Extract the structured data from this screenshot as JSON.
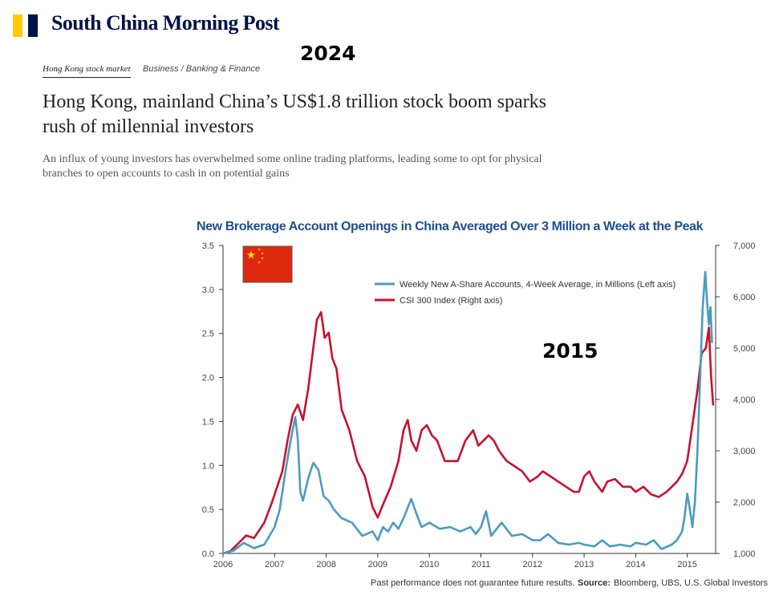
{
  "brand": {
    "name": "South China Morning Post",
    "colors": {
      "yellow": "#ffca05",
      "navy": "#001246"
    }
  },
  "overlay": {
    "year_top": "2024",
    "year_chart": "2015"
  },
  "article": {
    "tag_primary": "Hong Kong stock market",
    "tag_section": "Business / Banking & Finance",
    "headline": "Hong Kong, mainland China’s US$1.8 trillion stock boom sparks rush of millennial investors",
    "summary": "An influx of young investors has overwhelmed some online trading platforms, leading some to opt for physical branches to open accounts to cash in on potential gains"
  },
  "flag": {
    "name": "china-flag",
    "color": "#de2910",
    "star_color": "#ffde00"
  },
  "chart_data": {
    "type": "line",
    "title": "New Brokerage Account Openings in China Averaged Over 3 Million a Week at the Peak",
    "footnote": "Past performance does not guarantee future results.",
    "source_label": "Source:",
    "source_text": "Bloomberg, UBS, U.S. Global Investors",
    "x_ticks": [
      "2006",
      "2007",
      "2008",
      "2009",
      "2010",
      "2011",
      "2012",
      "2013",
      "2014",
      "2015"
    ],
    "xlim": [
      2006,
      2015.55
    ],
    "y_left": {
      "ticks": [
        "0.0",
        "0.5",
        "1.0",
        "1.5",
        "2.0",
        "2.5",
        "3.0",
        "3.5"
      ],
      "ylim": [
        0,
        3.5
      ]
    },
    "y_right": {
      "ticks": [
        "1,000",
        "2,000",
        "3,000",
        "4,000",
        "5,000",
        "6,000",
        "7,000"
      ],
      "ylim": [
        1000,
        7000
      ]
    },
    "series": [
      {
        "name": "Weekly New A-Share Accounts, 4-Week Average, in Millions (Left axis)",
        "axis": "left",
        "color": "#4a9cc0",
        "x": [
          2006.0,
          2006.2,
          2006.4,
          2006.6,
          2006.8,
          2007.0,
          2007.1,
          2007.2,
          2007.3,
          2007.4,
          2007.45,
          2007.5,
          2007.55,
          2007.65,
          2007.75,
          2007.85,
          2007.95,
          2008.05,
          2008.15,
          2008.3,
          2008.5,
          2008.7,
          2008.9,
          2009.0,
          2009.1,
          2009.2,
          2009.3,
          2009.4,
          2009.5,
          2009.6,
          2009.65,
          2009.75,
          2009.85,
          2010.0,
          2010.2,
          2010.4,
          2010.6,
          2010.8,
          2010.9,
          2011.0,
          2011.1,
          2011.2,
          2011.4,
          2011.6,
          2011.8,
          2012.0,
          2012.15,
          2012.3,
          2012.5,
          2012.7,
          2012.9,
          2013.0,
          2013.2,
          2013.35,
          2013.5,
          2013.7,
          2013.9,
          2014.0,
          2014.2,
          2014.35,
          2014.5,
          2014.7,
          2014.8,
          2014.9,
          2014.95,
          2015.0,
          2015.05,
          2015.1,
          2015.15,
          2015.2,
          2015.25,
          2015.3,
          2015.35,
          2015.38,
          2015.42,
          2015.45,
          2015.48
        ],
        "values": [
          0.0,
          0.03,
          0.12,
          0.06,
          0.1,
          0.3,
          0.5,
          0.9,
          1.25,
          1.55,
          1.3,
          0.7,
          0.6,
          0.85,
          1.03,
          0.95,
          0.65,
          0.6,
          0.5,
          0.4,
          0.35,
          0.2,
          0.25,
          0.15,
          0.3,
          0.25,
          0.35,
          0.28,
          0.4,
          0.55,
          0.62,
          0.45,
          0.3,
          0.35,
          0.28,
          0.3,
          0.25,
          0.3,
          0.22,
          0.3,
          0.48,
          0.2,
          0.35,
          0.2,
          0.22,
          0.15,
          0.15,
          0.22,
          0.12,
          0.1,
          0.12,
          0.1,
          0.08,
          0.15,
          0.08,
          0.1,
          0.08,
          0.12,
          0.1,
          0.15,
          0.05,
          0.1,
          0.15,
          0.25,
          0.42,
          0.68,
          0.5,
          0.3,
          0.6,
          1.2,
          2.0,
          2.8,
          3.2,
          2.9,
          2.6,
          2.8,
          2.4
        ]
      },
      {
        "name": "CSI 300 Index (Right axis)",
        "axis": "right",
        "color": "#c8102e",
        "x": [
          2006.0,
          2006.15,
          2006.3,
          2006.45,
          2006.6,
          2006.8,
          2006.95,
          2007.05,
          2007.15,
          2007.25,
          2007.35,
          2007.45,
          2007.55,
          2007.65,
          2007.75,
          2007.82,
          2007.9,
          2007.97,
          2008.05,
          2008.12,
          2008.2,
          2008.3,
          2008.45,
          2008.6,
          2008.75,
          2008.9,
          2009.0,
          2009.1,
          2009.25,
          2009.4,
          2009.5,
          2009.58,
          2009.65,
          2009.75,
          2009.85,
          2009.95,
          2010.05,
          2010.15,
          2010.3,
          2010.45,
          2010.55,
          2010.7,
          2010.85,
          2010.95,
          2011.05,
          2011.15,
          2011.25,
          2011.35,
          2011.5,
          2011.65,
          2011.8,
          2011.95,
          2012.1,
          2012.2,
          2012.35,
          2012.5,
          2012.65,
          2012.8,
          2012.9,
          2013.0,
          2013.1,
          2013.2,
          2013.35,
          2013.45,
          2013.6,
          2013.75,
          2013.9,
          2014.0,
          2014.15,
          2014.3,
          2014.45,
          2014.6,
          2014.7,
          2014.8,
          2014.9,
          2015.0,
          2015.1,
          2015.2,
          2015.28,
          2015.36,
          2015.42,
          2015.46,
          2015.5
        ],
        "values": [
          1000,
          1050,
          1200,
          1350,
          1300,
          1600,
          2000,
          2300,
          2600,
          3200,
          3700,
          3900,
          3600,
          4200,
          5000,
          5550,
          5700,
          5200,
          5300,
          4800,
          4600,
          3800,
          3400,
          2800,
          2500,
          1900,
          1700,
          1950,
          2300,
          2800,
          3400,
          3600,
          3200,
          3000,
          3400,
          3500,
          3300,
          3200,
          2800,
          2800,
          2800,
          3200,
          3400,
          3100,
          3200,
          3300,
          3200,
          3000,
          2800,
          2700,
          2600,
          2400,
          2500,
          2600,
          2500,
          2400,
          2300,
          2200,
          2200,
          2500,
          2600,
          2400,
          2200,
          2400,
          2450,
          2300,
          2300,
          2200,
          2300,
          2150,
          2100,
          2200,
          2300,
          2400,
          2550,
          2800,
          3500,
          4200,
          4900,
          5000,
          5400,
          4500,
          3900
        ]
      }
    ]
  }
}
